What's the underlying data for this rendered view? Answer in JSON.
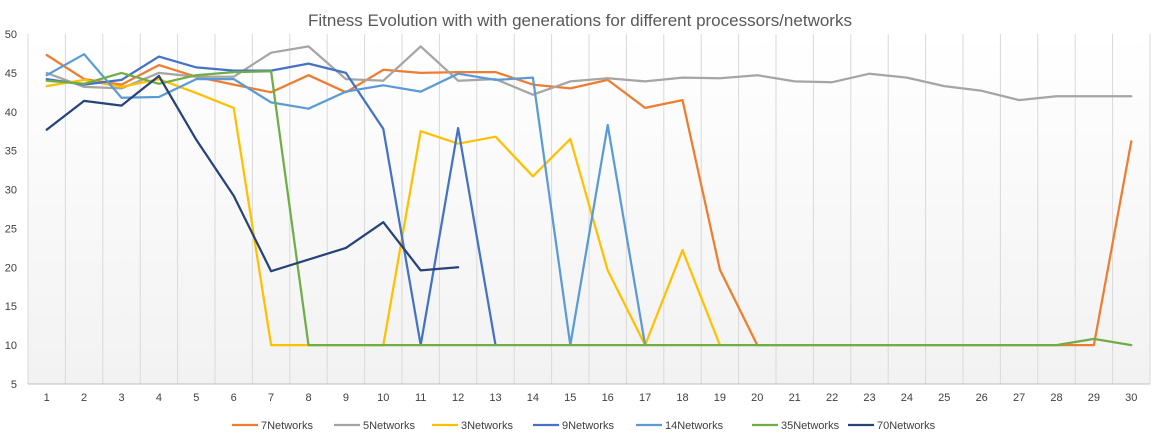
{
  "chart_data": {
    "type": "line",
    "title": "Fitness Evolution with with generations for different processors/networks",
    "xlabel": "",
    "ylabel": "",
    "x": [
      1,
      2,
      3,
      4,
      5,
      6,
      7,
      8,
      9,
      10,
      11,
      12,
      13,
      14,
      15,
      16,
      17,
      18,
      19,
      20,
      21,
      22,
      23,
      24,
      25,
      26,
      27,
      28,
      29,
      30
    ],
    "ylim": [
      5,
      50
    ],
    "yticks": [
      5,
      10,
      15,
      20,
      25,
      30,
      35,
      40,
      45,
      50
    ],
    "grid": "vertical",
    "legend_position": "bottom",
    "series": [
      {
        "name": "7Networks",
        "color": "#ED7D31",
        "values": [
          47.3,
          44.2,
          43.5,
          46,
          44.5,
          43.5,
          42.5,
          44.7,
          42.5,
          45.4,
          45,
          45.1,
          45.1,
          43.5,
          43,
          44.1,
          40.5,
          41.5,
          19.7,
          10,
          10,
          10,
          10,
          10,
          10,
          10,
          10,
          10,
          10,
          36.2
        ]
      },
      {
        "name": "5Networks",
        "color": "#A5A5A5",
        "values": [
          45,
          43.2,
          43,
          45,
          44.5,
          44.5,
          47.6,
          48.4,
          44.2,
          44,
          48.4,
          44,
          44.2,
          42.2,
          43.9,
          44.3,
          43.9,
          44.4,
          44.3,
          44.7,
          43.9,
          43.8,
          44.9,
          44.4,
          43.3,
          42.7,
          41.5,
          42,
          42,
          42
        ]
      },
      {
        "name": "3Networks",
        "color": "#FFC000",
        "values": [
          43.3,
          44.1,
          43.2,
          44.2,
          42.4,
          40.5,
          10,
          10,
          10,
          10,
          37.5,
          35.9,
          36.8,
          31.7,
          36.5,
          19.6,
          10,
          22.2,
          10,
          null,
          null,
          null,
          null,
          null,
          null,
          null,
          null,
          null,
          null,
          null
        ]
      },
      {
        "name": "9Networks",
        "color": "#4472C4",
        "values": [
          44.2,
          43.5,
          44.1,
          47.1,
          45.7,
          45.3,
          45.3,
          46.2,
          45,
          37.8,
          10,
          37.9,
          10,
          null,
          null,
          null,
          null,
          null,
          null,
          null,
          null,
          null,
          null,
          null,
          null,
          null,
          null,
          null,
          null,
          null
        ]
      },
      {
        "name": "14Networks",
        "color": "#5B9BD5",
        "values": [
          44.7,
          47.4,
          41.8,
          41.9,
          44.2,
          44.2,
          41.2,
          40.4,
          42.6,
          43.4,
          42.6,
          44.9,
          44.1,
          44.4,
          10,
          38.3,
          10,
          null,
          null,
          null,
          null,
          null,
          null,
          null,
          null,
          null,
          null,
          null,
          null,
          null
        ]
      },
      {
        "name": "35Networks",
        "color": "#70AD47",
        "values": [
          44,
          43.6,
          45,
          43.6,
          44.7,
          45.1,
          45.2,
          10,
          10,
          10,
          10,
          10,
          10,
          10,
          10,
          10,
          10,
          10,
          10,
          10,
          10,
          10,
          10,
          10,
          10,
          10,
          10,
          10,
          10.8,
          10
        ]
      },
      {
        "name": "70Networks",
        "color": "#264478",
        "values": [
          37.7,
          41.4,
          40.8,
          44.6,
          36.4,
          29.2,
          19.5,
          21,
          22.5,
          25.8,
          19.6,
          20,
          null,
          null,
          null,
          null,
          null,
          null,
          null,
          null,
          null,
          null,
          null,
          null,
          null,
          null,
          null,
          null,
          null,
          null
        ]
      }
    ]
  }
}
